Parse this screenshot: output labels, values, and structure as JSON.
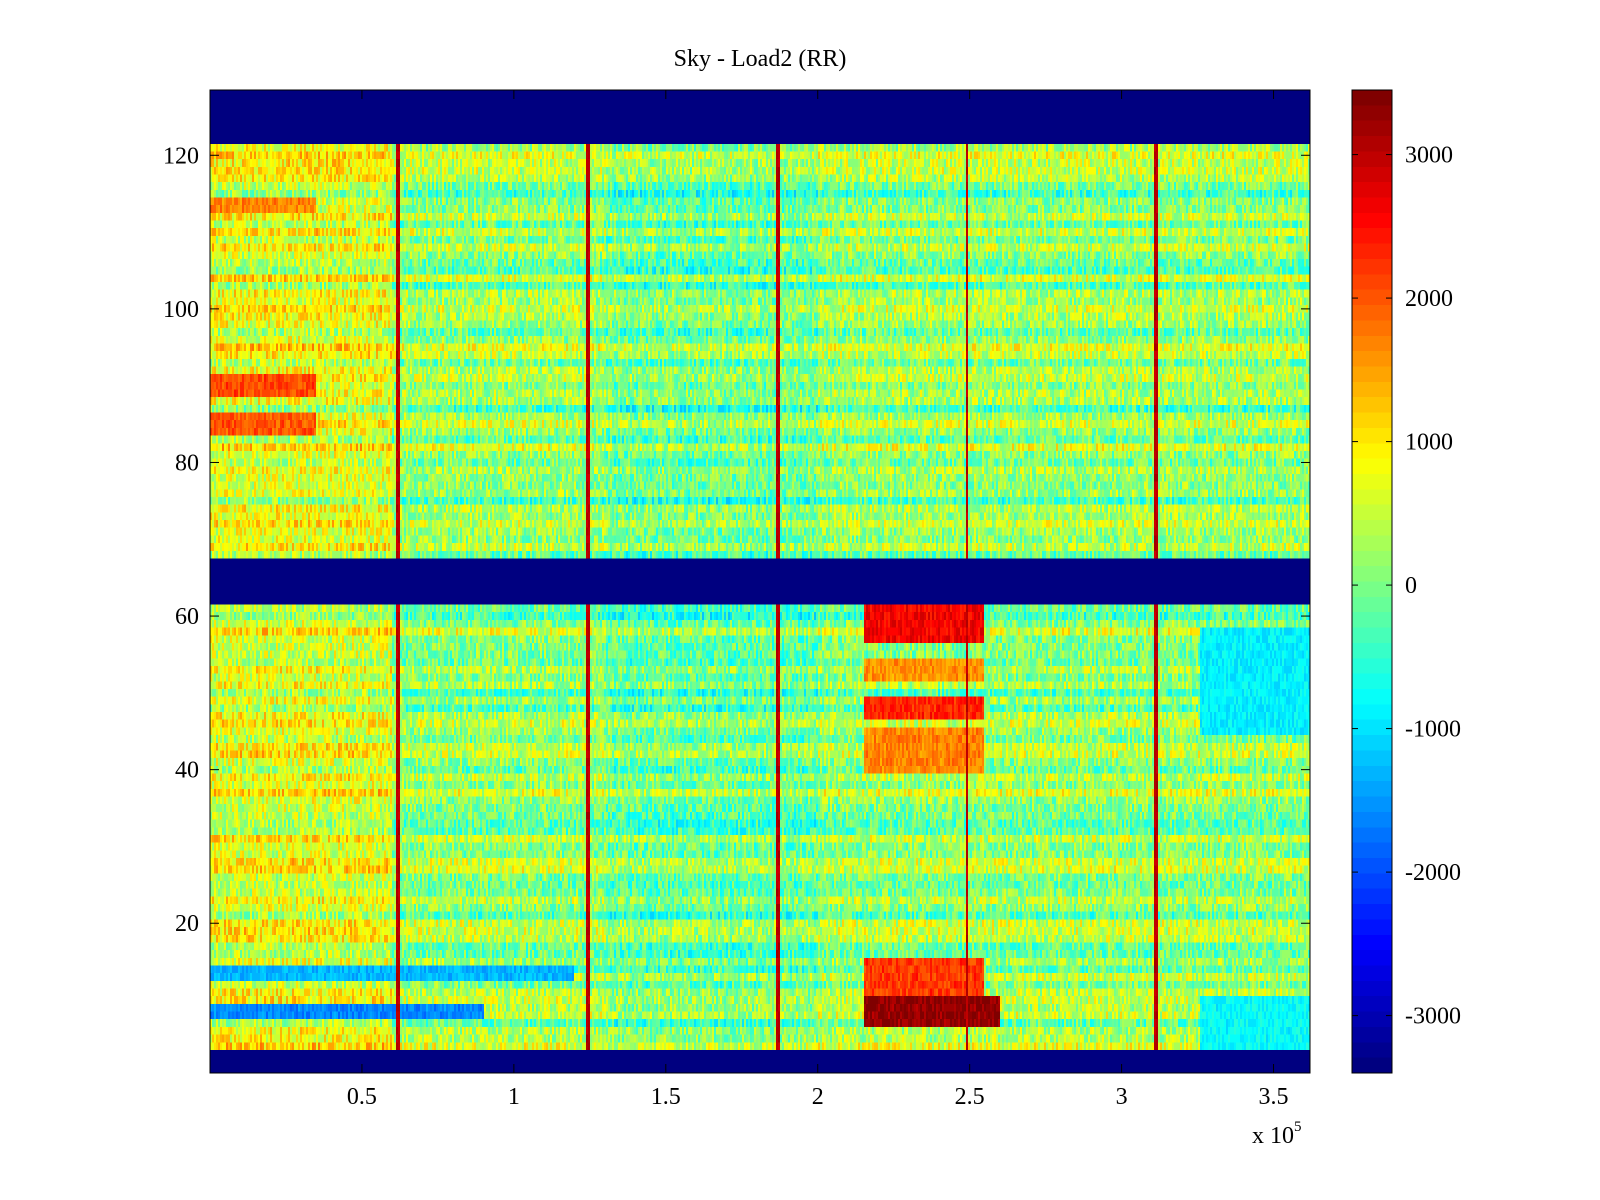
{
  "chart_data": {
    "type": "heatmap",
    "title": "Sky - Load2 (RR)",
    "xlabel": "",
    "ylabel": "",
    "x_multiplier_label": "x 10",
    "x_multiplier_exponent": "5",
    "xlim": [
      0,
      3.62
    ],
    "ylim": [
      0.5,
      128.5
    ],
    "grid": false,
    "colormap": "jet",
    "clim": [
      -3400,
      3450
    ],
    "x_ticks": [
      0.5,
      1,
      1.5,
      2,
      2.5,
      3,
      3.5
    ],
    "x_tick_labels": [
      "0.5",
      "1",
      "1.5",
      "2",
      "2.5",
      "3",
      "3.5"
    ],
    "y_ticks": [
      20,
      40,
      60,
      80,
      100,
      120
    ],
    "y_tick_labels": [
      "20",
      "40",
      "60",
      "80",
      "100",
      "120"
    ],
    "colorbar_ticks": [
      3000,
      2000,
      1000,
      0,
      -1000,
      -2000,
      -3000
    ],
    "colorbar_tick_labels": [
      "3000",
      "2000",
      "1000",
      "0",
      "-1000",
      "-2000",
      "-3000"
    ],
    "masked_channel_ranges": [
      [
        1,
        3
      ],
      [
        62,
        67
      ],
      [
        122,
        128
      ]
    ],
    "masked_value": -3400,
    "vertical_spike_x": [
      0.62,
      1.245,
      1.87,
      2.49,
      3.115
    ],
    "vertical_spike_value": 3000,
    "hot_regions": [
      {
        "x_range": [
          2.15,
          2.6
        ],
        "channel_range": [
          7,
          10
        ],
        "value": 3300
      },
      {
        "x_range": [
          2.15,
          2.55
        ],
        "channel_range": [
          11,
          15
        ],
        "value": 2200
      },
      {
        "x_range": [
          2.15,
          2.55
        ],
        "channel_range": [
          40,
          45
        ],
        "value": 1700
      },
      {
        "x_range": [
          2.15,
          2.55
        ],
        "channel_range": [
          47,
          49
        ],
        "value": 2300
      },
      {
        "x_range": [
          2.15,
          2.55
        ],
        "channel_range": [
          52,
          54
        ],
        "value": 1600
      },
      {
        "x_range": [
          2.15,
          2.55
        ],
        "channel_range": [
          57,
          61
        ],
        "value": 2600
      },
      {
        "x_range": [
          0.0,
          0.35
        ],
        "channel_range": [
          84,
          86
        ],
        "value": 2000
      },
      {
        "x_range": [
          0.0,
          0.35
        ],
        "channel_range": [
          89,
          91
        ],
        "value": 2100
      },
      {
        "x_range": [
          0.0,
          0.35
        ],
        "channel_range": [
          113,
          114
        ],
        "value": 1700
      }
    ],
    "cold_regions": [
      {
        "x_range": [
          0.0,
          0.9
        ],
        "channel_range": [
          8,
          9
        ],
        "value": -1600
      },
      {
        "x_range": [
          0.0,
          1.2
        ],
        "channel_range": [
          13,
          14
        ],
        "value": -1300
      },
      {
        "x_range": [
          3.26,
          3.62
        ],
        "channel_range": [
          45,
          58
        ],
        "value": -900
      },
      {
        "x_range": [
          3.26,
          3.62
        ],
        "channel_range": [
          4,
          10
        ],
        "value": -800
      }
    ]
  }
}
